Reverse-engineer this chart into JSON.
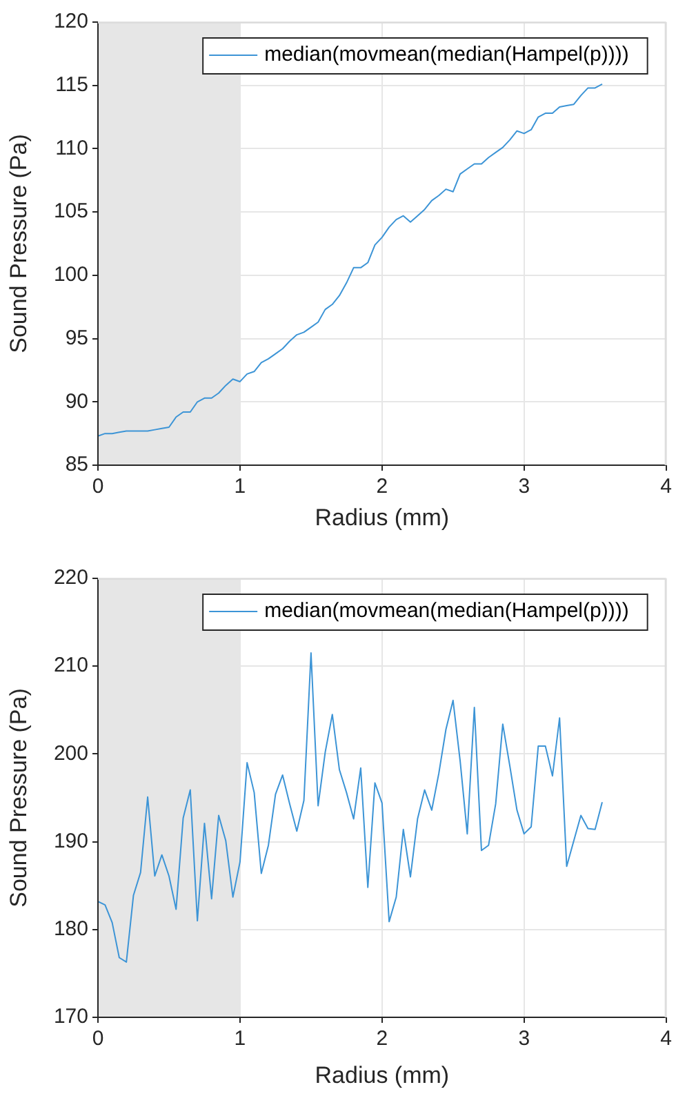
{
  "chart_data": [
    {
      "type": "line",
      "xlabel": "Radius (mm)",
      "ylabel": "Sound Pressure (Pa)",
      "xlim": [
        0,
        4
      ],
      "xticks": [
        0,
        1,
        2,
        3,
        4
      ],
      "ylim": [
        85,
        120
      ],
      "yticks": [
        85,
        90,
        95,
        100,
        105,
        110,
        115,
        120
      ],
      "grid": true,
      "legend": "top right",
      "marker": "none",
      "line_style": "solid",
      "bands": [
        {
          "axis": "x",
          "from": 0,
          "to": 1,
          "color": "#e6e6e6"
        }
      ],
      "x": [
        0,
        0.05,
        0.1,
        0.15,
        0.2,
        0.25,
        0.3,
        0.35,
        0.4,
        0.45,
        0.5,
        0.55,
        0.6,
        0.65,
        0.7,
        0.75,
        0.8,
        0.85,
        0.9,
        0.95,
        1,
        1.05,
        1.1,
        1.15,
        1.2,
        1.25,
        1.3,
        1.35,
        1.4,
        1.45,
        1.5,
        1.55,
        1.6,
        1.65,
        1.7,
        1.75,
        1.8,
        1.85,
        1.9,
        1.95,
        2,
        2.05,
        2.1,
        2.15,
        2.2,
        2.25,
        2.3,
        2.35,
        2.4,
        2.45,
        2.5,
        2.55,
        2.6,
        2.65,
        2.7,
        2.75,
        2.8,
        2.85,
        2.9,
        2.95,
        3,
        3.05,
        3.1,
        3.15,
        3.2,
        3.25,
        3.3,
        3.35,
        3.4,
        3.45,
        3.5,
        3.55
      ],
      "series": [
        {
          "name": "median(movmean(median(Hampel(p))))",
          "color": "#3c94d6",
          "values": [
            87.3,
            87.5,
            87.5,
            87.6,
            87.7,
            87.7,
            87.7,
            87.7,
            87.8,
            87.9,
            88.0,
            88.8,
            89.2,
            89.2,
            90.0,
            90.3,
            90.3,
            90.7,
            91.3,
            91.8,
            91.6,
            92.2,
            92.4,
            93.1,
            93.4,
            93.8,
            94.2,
            94.8,
            95.3,
            95.5,
            95.9,
            96.3,
            97.3,
            97.7,
            98.4,
            99.4,
            100.6,
            100.6,
            101.0,
            102.4,
            103.0,
            103.8,
            104.4,
            104.7,
            104.2,
            104.7,
            105.2,
            105.9,
            106.3,
            106.8,
            106.6,
            108.0,
            108.4,
            108.8,
            108.8,
            109.3,
            109.7,
            110.1,
            110.7,
            111.4,
            111.2,
            111.5,
            112.5,
            112.8,
            112.8,
            113.3,
            113.4,
            113.5,
            114.2,
            114.8,
            114.8,
            115.1
          ]
        }
      ]
    },
    {
      "type": "line",
      "xlabel": "Radius (mm)",
      "ylabel": "Sound Pressure (Pa)",
      "xlim": [
        0,
        4
      ],
      "xticks": [
        0,
        1,
        2,
        3,
        4
      ],
      "ylim": [
        170,
        220
      ],
      "yticks": [
        170,
        180,
        190,
        200,
        210,
        220
      ],
      "grid": true,
      "legend": "top right",
      "marker": "none",
      "line_style": "solid",
      "bands": [
        {
          "axis": "x",
          "from": 0,
          "to": 1,
          "color": "#e6e6e6"
        }
      ],
      "x": [
        0,
        0.05,
        0.1,
        0.15,
        0.2,
        0.25,
        0.3,
        0.35,
        0.4,
        0.45,
        0.5,
        0.55,
        0.6,
        0.65,
        0.7,
        0.75,
        0.8,
        0.85,
        0.9,
        0.95,
        1,
        1.05,
        1.1,
        1.15,
        1.2,
        1.25,
        1.3,
        1.35,
        1.4,
        1.45,
        1.5,
        1.55,
        1.6,
        1.65,
        1.7,
        1.75,
        1.8,
        1.85,
        1.9,
        1.95,
        2,
        2.05,
        2.1,
        2.15,
        2.2,
        2.25,
        2.3,
        2.35,
        2.4,
        2.45,
        2.5,
        2.55,
        2.6,
        2.65,
        2.7,
        2.75,
        2.8,
        2.85,
        2.9,
        2.95,
        3,
        3.05,
        3.1,
        3.15,
        3.2,
        3.25,
        3.3,
        3.35,
        3.4,
        3.45,
        3.5,
        3.55
      ],
      "series": [
        {
          "name": "median(movmean(median(Hampel(p))))",
          "color": "#3c94d6",
          "values": [
            183.2,
            182.8,
            180.8,
            176.8,
            176.3,
            183.9,
            186.5,
            195.1,
            186.1,
            188.5,
            186.1,
            182.3,
            192.7,
            195.9,
            181.0,
            192.1,
            183.5,
            193.0,
            190.1,
            183.7,
            187.7,
            199.0,
            195.6,
            186.4,
            189.6,
            195.4,
            197.6,
            194.3,
            191.2,
            194.7,
            211.5,
            194.1,
            200.2,
            204.5,
            198.2,
            195.6,
            192.6,
            198.4,
            184.8,
            196.7,
            194.4,
            180.9,
            183.7,
            191.4,
            186.0,
            192.6,
            195.9,
            193.6,
            197.8,
            202.8,
            206.1,
            199.2,
            190.9,
            205.3,
            189.0,
            189.6,
            194.3,
            203.4,
            198.6,
            193.6,
            190.9,
            191.7,
            200.9,
            200.9,
            197.5,
            204.1,
            187.2,
            190.1,
            193.0,
            191.5,
            191.4,
            194.5
          ]
        }
      ]
    }
  ]
}
